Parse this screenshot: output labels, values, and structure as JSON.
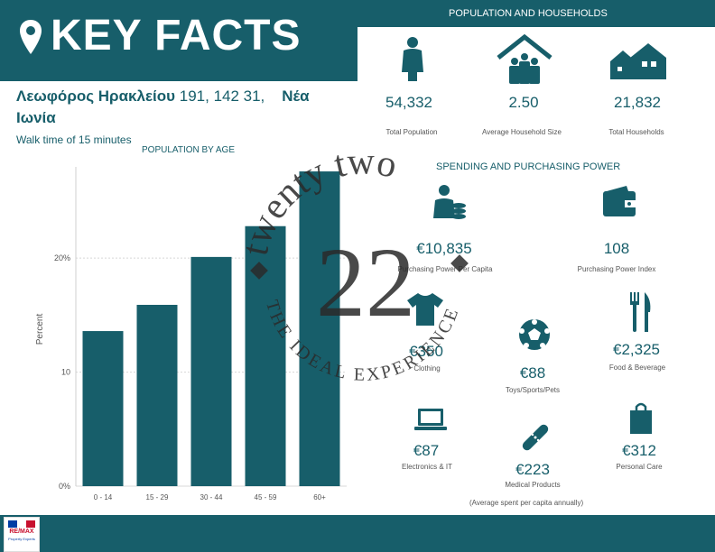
{
  "header": {
    "title": "KEY FACTS",
    "pin_icon": "map-pin-icon"
  },
  "address": {
    "line_bold_1": "Λεωφόρος Ηρακλείου",
    "line_regular": " 191, 142 31, ",
    "line_bold_2": "Νέα",
    "line_bold_3": "Ιωνία",
    "walk_time": "Walk time of 15 minutes"
  },
  "households": {
    "section_title": "POPULATION AND HOUSEHOLDS",
    "items": [
      {
        "icon": "person-icon",
        "value": "54,332",
        "label": "Total Population"
      },
      {
        "icon": "house-family-icon",
        "value": "2.50",
        "label": "Average Household Size"
      },
      {
        "icon": "houses-icon",
        "value": "21,832",
        "label": "Total Households"
      }
    ]
  },
  "spending": {
    "section_title": "SPENDING AND PURCHASING POWER",
    "items": [
      {
        "icon": "person-coins-icon",
        "value": "€10,835",
        "label": "Purchasing Power Per Capita"
      },
      {
        "icon": "wallet-icon",
        "value": "108",
        "label": "Purchasing Power Index"
      },
      {
        "icon": "tshirt-icon",
        "value": "€350",
        "label": "Clothing"
      },
      {
        "icon": "soccer-ball-icon",
        "value": "€88",
        "label": "Toys/Sports/Pets"
      },
      {
        "icon": "fork-knife-icon",
        "value": "€2,325",
        "label": "Food & Beverage"
      },
      {
        "icon": "laptop-icon",
        "value": "€87",
        "label": "Electronics & IT"
      },
      {
        "icon": "bandage-icon",
        "value": "€223",
        "label": "Medical Products"
      },
      {
        "icon": "shopping-bag-icon",
        "value": "€312",
        "label": "Personal Care"
      }
    ],
    "note": "(Average spent per capita annually)"
  },
  "chart_data": {
    "type": "bar",
    "title": "POPULATION BY AGE",
    "categories": [
      "0 - 14",
      "15 - 29",
      "30 - 44",
      "45 - 59",
      "60+"
    ],
    "values": [
      13.6,
      15.9,
      20.1,
      22.8,
      27.6
    ],
    "ylabel": "Percent",
    "ylim": [
      0,
      28
    ],
    "yticks": [
      {
        "v": 0,
        "label": "0%"
      },
      {
        "v": 10,
        "label": "10"
      },
      {
        "v": 20,
        "label": "20%"
      }
    ],
    "color": "#175e6a",
    "grid": true
  },
  "watermark": {
    "arc_top": "twenty two",
    "number": "22",
    "arc_bottom": "THE IDEAL EXPERIENCE"
  },
  "footer": {
    "logo_text": "RE/MAX",
    "logo_sub": "Property Experts"
  },
  "colors": {
    "primary": "#175e6a",
    "watermark": "#2a2a2a"
  }
}
